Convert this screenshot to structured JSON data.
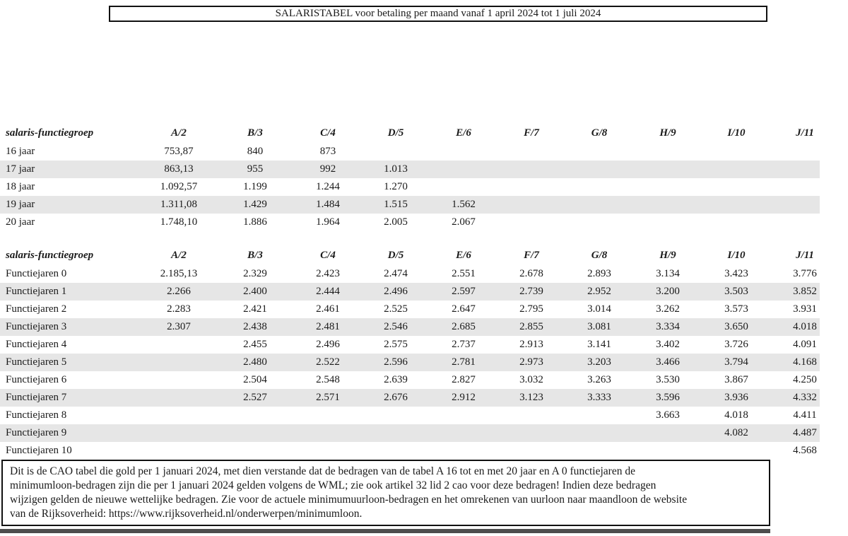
{
  "title_bar": {
    "text": "SALARISTABEL voor betaling per maand vanaf 1 april 2024 tot 1 juli 2024"
  },
  "table_headers": {
    "label": "salaris-functiegroep",
    "groups": [
      "A/2",
      "B/3",
      "C/4",
      "D/5",
      "E/6",
      "F/7",
      "G/8",
      "H/9",
      "I/10",
      "J/11"
    ]
  },
  "age_table": {
    "rows": [
      {
        "label": "16 jaar",
        "values": [
          "753,87",
          "840",
          "873",
          "",
          "",
          "",
          "",
          "",
          "",
          ""
        ]
      },
      {
        "label": "17 jaar",
        "values": [
          "863,13",
          "955",
          "992",
          "1.013",
          "",
          "",
          "",
          "",
          "",
          ""
        ]
      },
      {
        "label": "18 jaar",
        "values": [
          "1.092,57",
          "1.199",
          "1.244",
          "1.270",
          "",
          "",
          "",
          "",
          "",
          ""
        ]
      },
      {
        "label": "19 jaar",
        "values": [
          "1.311,08",
          "1.429",
          "1.484",
          "1.515",
          "1.562",
          "",
          "",
          "",
          "",
          ""
        ]
      },
      {
        "label": "20 jaar",
        "values": [
          "1.748,10",
          "1.886",
          "1.964",
          "2.005",
          "2.067",
          "",
          "",
          "",
          "",
          ""
        ]
      }
    ]
  },
  "function_table": {
    "rows": [
      {
        "label": "Functiejaren 0",
        "values": [
          "2.185,13",
          "2.329",
          "2.423",
          "2.474",
          "2.551",
          "2.678",
          "2.893",
          "3.134",
          "3.423",
          "3.776"
        ]
      },
      {
        "label": "Functiejaren 1",
        "values": [
          "2.266",
          "2.400",
          "2.444",
          "2.496",
          "2.597",
          "2.739",
          "2.952",
          "3.200",
          "3.503",
          "3.852"
        ]
      },
      {
        "label": "Functiejaren 2",
        "values": [
          "2.283",
          "2.421",
          "2.461",
          "2.525",
          "2.647",
          "2.795",
          "3.014",
          "3.262",
          "3.573",
          "3.931"
        ]
      },
      {
        "label": "Functiejaren 3",
        "values": [
          "2.307",
          "2.438",
          "2.481",
          "2.546",
          "2.685",
          "2.855",
          "3.081",
          "3.334",
          "3.650",
          "4.018"
        ]
      },
      {
        "label": "Functiejaren 4",
        "values": [
          "",
          "2.455",
          "2.496",
          "2.575",
          "2.737",
          "2.913",
          "3.141",
          "3.402",
          "3.726",
          "4.091"
        ]
      },
      {
        "label": "Functiejaren 5",
        "values": [
          "",
          "2.480",
          "2.522",
          "2.596",
          "2.781",
          "2.973",
          "3.203",
          "3.466",
          "3.794",
          "4.168"
        ]
      },
      {
        "label": "Functiejaren 6",
        "values": [
          "",
          "2.504",
          "2.548",
          "2.639",
          "2.827",
          "3.032",
          "3.263",
          "3.530",
          "3.867",
          "4.250"
        ]
      },
      {
        "label": "Functiejaren 7",
        "values": [
          "",
          "2.527",
          "2.571",
          "2.676",
          "2.912",
          "3.123",
          "3.333",
          "3.596",
          "3.936",
          "4.332"
        ]
      },
      {
        "label": "Functiejaren 8",
        "values": [
          "",
          "",
          "",
          "",
          "",
          "",
          "",
          "3.663",
          "4.018",
          "4.411"
        ]
      },
      {
        "label": "Functiejaren 9",
        "values": [
          "",
          "",
          "",
          "",
          "",
          "",
          "",
          "",
          "4.082",
          "4.487"
        ]
      },
      {
        "label": "Functiejaren 10",
        "values": [
          "",
          "",
          "",
          "",
          "",
          "",
          "",
          "",
          "",
          "4.568"
        ]
      }
    ]
  },
  "footer_note": {
    "lines": [
      "Dit is de CAO tabel die gold per 1 januari 2024, met dien verstande dat de bedragen van de tabel A 16 tot en met 20 jaar en A 0 functiejaren de",
      "minimumloon-bedragen zijn die per 1 januari 2024 gelden volgens de WML; zie ook artikel 32 lid 2 cao voor deze bedragen! Indien deze bedragen",
      "wijzigen gelden de nieuwe wettelijke bedragen. Zie voor de actuele minimumuurloon-bedragen en het omrekenen van uurloon naar maandloon de website",
      "van de Rijksoverheid: https://www.rijksoverheid.nl/onderwerpen/minimumloon."
    ]
  },
  "colors": {
    "stripe": "#e6e6e6",
    "border": "#111111",
    "bottom_bar": "#4d4d4d",
    "text": "#1a1a1a"
  }
}
